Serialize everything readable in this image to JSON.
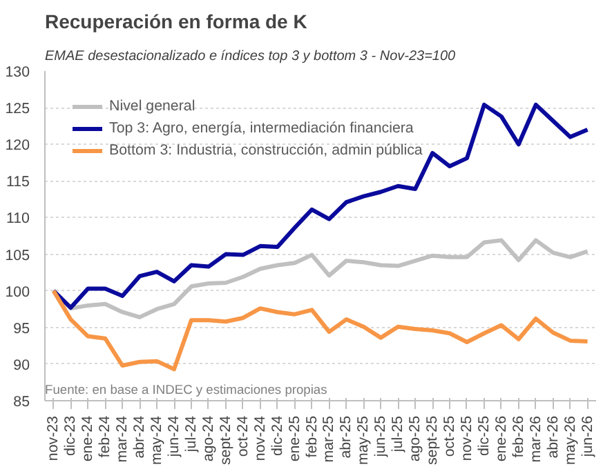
{
  "chart_data": {
    "type": "line",
    "title": "Recuperación en forma de K",
    "subtitle": "EMAE desestacionalizado e índices top 3 y bottom 3 - Nov-23=100",
    "categories": [
      "nov-23",
      "dic-23",
      "ene-24",
      "feb-24",
      "mar-24",
      "abr-24",
      "may-24",
      "jun-24",
      "jul-24",
      "ago-24",
      "sept-24",
      "oct-24",
      "nov-24",
      "dic-24",
      "ene-25",
      "feb-25",
      "mar-25",
      "abr-25",
      "may-25",
      "jun-25",
      "jul-25",
      "ago-25",
      "sept-25",
      "oct-25",
      "nov-25",
      "dic-25",
      "ene-26",
      "feb-26",
      "mar-26",
      "abr-26",
      "may-26",
      "jun-26"
    ],
    "series": [
      {
        "name": "Nivel general",
        "color": "#c0c0c0",
        "values": [
          100,
          97.6,
          98,
          98.2,
          97.1,
          96.4,
          97.5,
          98.2,
          100.6,
          101,
          101.1,
          101.9,
          103,
          103.5,
          103.8,
          104.9,
          102.1,
          104.1,
          103.9,
          103.5,
          103.4,
          104.1,
          104.8,
          104.6,
          104.6,
          106.6,
          106.9,
          104.2,
          106.9,
          105.2,
          104.6,
          105.4
        ]
      },
      {
        "name": "Top 3: Agro, energía, intermediación financiera",
        "color": "#0a0a9c",
        "values": [
          100,
          97.7,
          100.3,
          100.3,
          99.3,
          102,
          102.6,
          101.3,
          103.5,
          103.3,
          105,
          104.9,
          106.1,
          106,
          108.6,
          111.1,
          109.8,
          112.1,
          112.9,
          113.5,
          114.3,
          113.9,
          118.8,
          117,
          118.1,
          125.4,
          123.8,
          120,
          125.4,
          123.2,
          121,
          122
        ]
      },
      {
        "name": "Bottom 3: Industria, construcción, admin pública",
        "color": "#f79646",
        "values": [
          100,
          96.1,
          93.8,
          93.5,
          89.8,
          90.3,
          90.4,
          89.3,
          96,
          96,
          95.8,
          96.3,
          97.6,
          97.1,
          96.8,
          97.4,
          94.4,
          96.1,
          95.1,
          93.6,
          95.1,
          94.8,
          94.6,
          94.2,
          93,
          94.2,
          95.3,
          93.4,
          96.2,
          94.3,
          93.2,
          93.1
        ]
      }
    ],
    "ylim": [
      85,
      130
    ],
    "yticks": [
      85,
      90,
      95,
      100,
      105,
      110,
      115,
      120,
      125,
      130
    ],
    "grid": "y",
    "legend": "top left",
    "line_style": "solid",
    "marker": "none",
    "annotations": [
      "Fuente: en base a INDEC y estimaciones propias"
    ]
  }
}
